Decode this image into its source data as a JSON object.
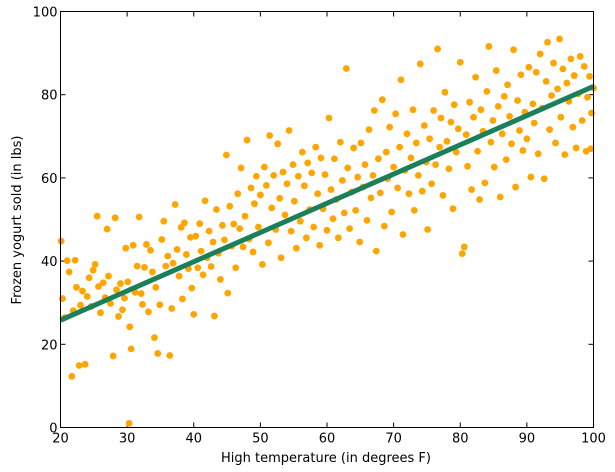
{
  "chart_data": {
    "type": "scatter",
    "title": "",
    "xlabel": "High temperature (in degrees F)",
    "ylabel": "Frozen yogurt sold (in lbs)",
    "xlim": [
      20,
      100
    ],
    "ylim": [
      0,
      100
    ],
    "xticks": [
      20,
      30,
      40,
      50,
      60,
      70,
      80,
      90,
      100
    ],
    "yticks": [
      0,
      20,
      40,
      60,
      80,
      100
    ],
    "xtick_labels": [
      "20",
      "30",
      "40",
      "50",
      "60",
      "70",
      "80",
      "90",
      "100"
    ],
    "ytick_labels": [
      "0",
      "20",
      "40",
      "60",
      "80",
      "100"
    ],
    "grid": false,
    "legend": "none",
    "point_color": "#FFA500",
    "line_color": "#1A7F5A",
    "series": [
      {
        "type": "scatter",
        "points": [
          [
            20.1,
            44.8
          ],
          [
            20.3,
            31
          ],
          [
            20.6,
            26.4
          ],
          [
            21,
            40.1
          ],
          [
            21.3,
            37.4
          ],
          [
            21.7,
            12.3
          ],
          [
            21.9,
            28.1
          ],
          [
            22.2,
            40.2
          ],
          [
            22.4,
            33.7
          ],
          [
            22.8,
            14.9
          ],
          [
            23,
            29.4
          ],
          [
            23.3,
            32.8
          ],
          [
            23.7,
            15.2
          ],
          [
            24,
            31.5
          ],
          [
            24.3,
            36
          ],
          [
            24.6,
            29.1
          ],
          [
            24.9,
            37.8
          ],
          [
            25.2,
            39.2
          ],
          [
            25.5,
            50.8
          ],
          [
            25.7,
            33.9
          ],
          [
            26,
            27.6
          ],
          [
            26.4,
            34.8
          ],
          [
            26.7,
            31.2
          ],
          [
            27,
            47.7
          ],
          [
            27.2,
            36.4
          ],
          [
            27.5,
            29.8
          ],
          [
            27.9,
            17.2
          ],
          [
            28.2,
            50.4
          ],
          [
            28.4,
            33.1
          ],
          [
            28.7,
            26.7
          ],
          [
            29,
            34.6
          ],
          [
            29.3,
            28.3
          ],
          [
            29.6,
            31.1
          ],
          [
            29.8,
            43.1
          ],
          [
            30.1,
            35
          ],
          [
            30.4,
            24.2
          ],
          [
            30.6,
            18.9
          ],
          [
            30.9,
            43.8
          ],
          [
            31.2,
            32.5
          ],
          [
            31.5,
            38.8
          ],
          [
            31.8,
            50.6
          ],
          [
            32.1,
            32.2
          ],
          [
            32.3,
            29.6
          ],
          [
            32.6,
            38.5
          ],
          [
            32.9,
            44
          ],
          [
            33.2,
            27.8
          ],
          [
            33.5,
            42.6
          ],
          [
            33.8,
            37.4
          ],
          [
            34.1,
            21.6
          ],
          [
            34.3,
            33.7
          ],
          [
            34.6,
            17.8
          ],
          [
            34.9,
            29.5
          ],
          [
            35.2,
            45.2
          ],
          [
            35.5,
            49.6
          ],
          [
            35.8,
            38.8
          ],
          [
            36.1,
            41.2
          ],
          [
            36.4,
            17.3
          ],
          [
            36.7,
            28.6
          ],
          [
            36.9,
            39.5
          ],
          [
            37.2,
            53.6
          ],
          [
            37.5,
            42.8
          ],
          [
            37.8,
            36.4
          ],
          [
            38.1,
            48.1
          ],
          [
            38.3,
            30.9
          ],
          [
            38.6,
            49.2
          ],
          [
            38.9,
            41.6
          ],
          [
            39.2,
            38.2
          ],
          [
            39.5,
            45.7
          ],
          [
            39.7,
            33.5
          ],
          [
            40,
            27.2
          ],
          [
            40.3,
            46
          ],
          [
            40.6,
            38.4
          ],
          [
            40.9,
            49
          ],
          [
            41.1,
            42.4
          ],
          [
            41.4,
            36.7
          ],
          [
            41.7,
            54.5
          ],
          [
            42,
            40.8
          ],
          [
            42.3,
            47.2
          ],
          [
            42.6,
            38.7
          ],
          [
            42.9,
            44.6
          ],
          [
            43.1,
            26.8
          ],
          [
            43.4,
            52.4
          ],
          [
            43.7,
            41.9
          ],
          [
            44,
            35.6
          ],
          [
            44.3,
            48.6
          ],
          [
            44.6,
            45.1
          ],
          [
            44.9,
            65.5
          ],
          [
            45.1,
            32.3
          ],
          [
            45.4,
            53.2
          ],
          [
            45.7,
            43.6
          ],
          [
            46,
            48.9
          ],
          [
            46.3,
            38.4
          ],
          [
            46.6,
            56.2
          ],
          [
            46.9,
            47.8
          ],
          [
            47.1,
            62.4
          ],
          [
            47.4,
            43.4
          ],
          [
            47.7,
            50.8
          ],
          [
            48,
            69.1
          ],
          [
            48.3,
            45.3
          ],
          [
            48.6,
            57.6
          ],
          [
            48.9,
            42.2
          ],
          [
            49.1,
            53.8
          ],
          [
            49.4,
            60.4
          ],
          [
            49.7,
            48.2
          ],
          [
            50,
            55.9
          ],
          [
            50.3,
            39.2
          ],
          [
            50.6,
            62.6
          ],
          [
            50.9,
            58.2
          ],
          [
            51.2,
            44.4
          ],
          [
            51.4,
            70.2
          ],
          [
            51.7,
            52.8
          ],
          [
            52,
            60.6
          ],
          [
            52.3,
            47.6
          ],
          [
            52.6,
            68.2
          ],
          [
            52.9,
            55.1
          ],
          [
            53.1,
            40.8
          ],
          [
            53.4,
            61.4
          ],
          [
            53.7,
            51.1
          ],
          [
            54,
            58.6
          ],
          [
            54.3,
            71.4
          ],
          [
            54.6,
            47.2
          ],
          [
            54.9,
            63.2
          ],
          [
            55.1,
            54.4
          ],
          [
            55.4,
            43.1
          ],
          [
            55.7,
            60.4
          ],
          [
            56,
            49.6
          ],
          [
            56.3,
            66.2
          ],
          [
            56.6,
            58.1
          ],
          [
            56.9,
            45.6
          ],
          [
            57.1,
            63.6
          ],
          [
            57.4,
            52.4
          ],
          [
            57.7,
            61.2
          ],
          [
            58,
            48.2
          ],
          [
            58.3,
            67.4
          ],
          [
            58.6,
            56.2
          ],
          [
            58.9,
            43.8
          ],
          [
            59.1,
            64.8
          ],
          [
            59.4,
            52.6
          ],
          [
            59.7,
            60.8
          ],
          [
            60,
            47.4
          ],
          [
            60.3,
            74.4
          ],
          [
            60.6,
            57.2
          ],
          [
            60.9,
            50.2
          ],
          [
            61.1,
            64.6
          ],
          [
            61.4,
            54.8
          ],
          [
            61.7,
            45.6
          ],
          [
            62,
            68.6
          ],
          [
            62.3,
            59.4
          ],
          [
            62.6,
            51.6
          ],
          [
            62.9,
            86.3
          ],
          [
            63.1,
            62.4
          ],
          [
            63.4,
            47.8
          ],
          [
            63.7,
            56.6
          ],
          [
            64,
            67.2
          ],
          [
            64.3,
            52.2
          ],
          [
            64.6,
            60.2
          ],
          [
            64.9,
            44.6
          ],
          [
            65.1,
            68.4
          ],
          [
            65.4,
            57.8
          ],
          [
            65.7,
            63.2
          ],
          [
            66,
            49.8
          ],
          [
            66.3,
            71.6
          ],
          [
            66.6,
            55.2
          ],
          [
            66.9,
            60.6
          ],
          [
            67.1,
            76.2
          ],
          [
            67.4,
            42.4
          ],
          [
            67.7,
            64.6
          ],
          [
            68,
            56.4
          ],
          [
            68.3,
            78.8
          ],
          [
            68.6,
            48.4
          ],
          [
            68.9,
            66.2
          ],
          [
            69.1,
            59.8
          ],
          [
            69.4,
            72.2
          ],
          [
            69.7,
            51.8
          ],
          [
            70,
            62.6
          ],
          [
            70.3,
            75.4
          ],
          [
            70.6,
            57.6
          ],
          [
            70.9,
            67.4
          ],
          [
            71.1,
            83.6
          ],
          [
            71.4,
            46.4
          ],
          [
            71.7,
            61.8
          ],
          [
            72,
            70.6
          ],
          [
            72.3,
            56.2
          ],
          [
            72.6,
            64.8
          ],
          [
            72.9,
            76.4
          ],
          [
            73.1,
            52.2
          ],
          [
            73.4,
            68.4
          ],
          [
            73.7,
            60.6
          ],
          [
            74,
            87.4
          ],
          [
            74.3,
            56.8
          ],
          [
            74.6,
            72.6
          ],
          [
            74.9,
            63.8
          ],
          [
            75.1,
            47.6
          ],
          [
            75.4,
            69.4
          ],
          [
            75.7,
            58.6
          ],
          [
            76,
            76.2
          ],
          [
            76.3,
            63.2
          ],
          [
            76.6,
            91
          ],
          [
            76.9,
            67.4
          ],
          [
            77.1,
            74.4
          ],
          [
            77.4,
            55.8
          ],
          [
            77.7,
            80.6
          ],
          [
            78,
            68.8
          ],
          [
            78.3,
            62.2
          ],
          [
            78.6,
            73.4
          ],
          [
            78.9,
            52.6
          ],
          [
            79.1,
            77.6
          ],
          [
            79.4,
            66.2
          ],
          [
            79.7,
            71.8
          ],
          [
            80,
            87.8
          ],
          [
            80.3,
            41.8
          ],
          [
            80.6,
            43.4
          ],
          [
            80.9,
            70.4
          ],
          [
            81.1,
            62.8
          ],
          [
            81.4,
            78.2
          ],
          [
            81.7,
            57.2
          ],
          [
            82,
            74.6
          ],
          [
            82.3,
            84.2
          ],
          [
            82.6,
            66.4
          ],
          [
            82.9,
            54.8
          ],
          [
            83.1,
            76.4
          ],
          [
            83.4,
            71.2
          ],
          [
            83.7,
            58.8
          ],
          [
            84,
            80.8
          ],
          [
            84.3,
            91.6
          ],
          [
            84.6,
            68.6
          ],
          [
            84.9,
            73.8
          ],
          [
            85.1,
            62.6
          ],
          [
            85.4,
            85.8
          ],
          [
            85.7,
            77.2
          ],
          [
            86,
            55.4
          ],
          [
            86.3,
            70.6
          ],
          [
            86.6,
            79.6
          ],
          [
            86.9,
            64.4
          ],
          [
            87.1,
            82.4
          ],
          [
            87.4,
            74.8
          ],
          [
            87.7,
            68.2
          ],
          [
            88,
            90.8
          ],
          [
            88.3,
            57.8
          ],
          [
            88.6,
            78.6
          ],
          [
            88.9,
            71.4
          ],
          [
            89.1,
            84.8
          ],
          [
            89.4,
            66.6
          ],
          [
            89.7,
            75.8
          ],
          [
            90,
            69.4
          ],
          [
            90.3,
            86.6
          ],
          [
            90.6,
            60.2
          ],
          [
            90.9,
            77.8
          ],
          [
            91.1,
            73.2
          ],
          [
            91.4,
            85.4
          ],
          [
            91.7,
            65.8
          ],
          [
            92,
            89.8
          ],
          [
            92.3,
            76.8
          ],
          [
            92.6,
            59.8
          ],
          [
            92.9,
            83.2
          ],
          [
            93.1,
            92.6
          ],
          [
            93.4,
            71.6
          ],
          [
            93.7,
            79.8
          ],
          [
            94,
            87.6
          ],
          [
            94.3,
            68.4
          ],
          [
            94.6,
            81.4
          ],
          [
            94.9,
            93.4
          ],
          [
            95.1,
            74.6
          ],
          [
            95.4,
            86.2
          ],
          [
            95.7,
            65.6
          ],
          [
            96,
            82.8
          ],
          [
            96.3,
            78.4
          ],
          [
            96.6,
            88.6
          ],
          [
            96.9,
            72.2
          ],
          [
            97.1,
            84.6
          ],
          [
            97.4,
            67.2
          ],
          [
            97.7,
            80.2
          ],
          [
            98,
            89.2
          ],
          [
            98.3,
            73.8
          ],
          [
            98.6,
            86.8
          ],
          [
            98.9,
            66.4
          ],
          [
            99.1,
            79.4
          ],
          [
            99.4,
            84.4
          ],
          [
            99.7,
            75.6
          ],
          [
            100,
            81.6
          ],
          [
            99.6,
            67
          ],
          [
            30.3,
            1
          ]
        ]
      },
      {
        "type": "line",
        "points": [
          [
            20,
            25.8
          ],
          [
            100,
            82
          ]
        ]
      }
    ]
  }
}
